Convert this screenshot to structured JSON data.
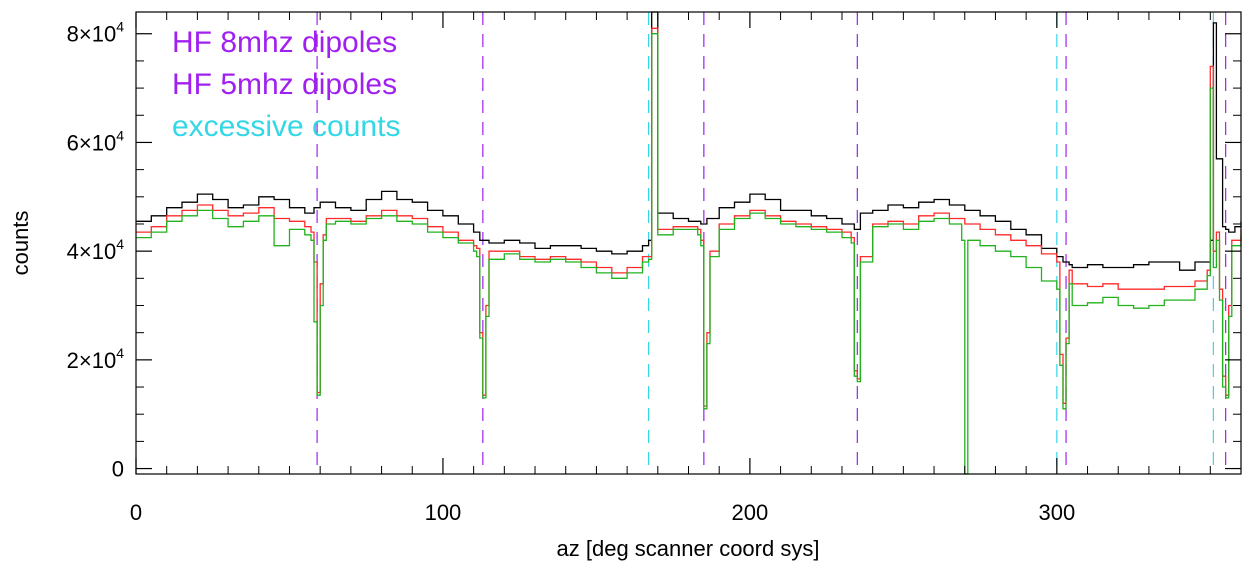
{
  "chart_data": {
    "type": "line",
    "title": "",
    "xlabel": "az [deg scanner coord sys]",
    "ylabel": "counts",
    "xlim": [
      0,
      360
    ],
    "ylim": [
      -1000,
      84000
    ],
    "x_ticks": [
      {
        "value": 0,
        "label": "0"
      },
      {
        "value": 100,
        "label": "100"
      },
      {
        "value": 200,
        "label": "200"
      },
      {
        "value": 300,
        "label": "300"
      }
    ],
    "y_ticks": [
      {
        "value": 0,
        "mant": "0",
        "exp": ""
      },
      {
        "value": 20000,
        "mant": "2×10",
        "exp": "4"
      },
      {
        "value": 40000,
        "mant": "4×10",
        "exp": "4"
      },
      {
        "value": 60000,
        "mant": "6×10",
        "exp": "4"
      },
      {
        "value": 80000,
        "mant": "8×10",
        "exp": "4"
      }
    ],
    "grid": false,
    "legend_position": "top-left",
    "legend": [
      {
        "label": "HF 8mhz dipoles",
        "color": "#a020f0"
      },
      {
        "label": "HF 5mhz dipoles",
        "color": "#a020f0"
      },
      {
        "label": "excessive counts",
        "color": "#34d7e6"
      }
    ],
    "vlines": [
      {
        "x": 59,
        "color": "#a020f0",
        "group": "dipoles"
      },
      {
        "x": 113,
        "color": "#a020f0",
        "group": "dipoles"
      },
      {
        "x": 185,
        "color": "#a020f0",
        "group": "dipoles"
      },
      {
        "x": 235,
        "color": "#a020f0",
        "group": "dipoles"
      },
      {
        "x": 303,
        "color": "#a020f0",
        "group": "dipoles"
      },
      {
        "x": 355,
        "color": "#a020f0",
        "group": "dipoles"
      },
      {
        "x": 167,
        "color": "#34d7e6",
        "group": "excessive"
      },
      {
        "x": 300,
        "color": "#34d7e6",
        "group": "excessive"
      },
      {
        "x": 351,
        "color": "#34d7e6",
        "group": "excessive"
      }
    ],
    "series": [
      {
        "color": "#000000",
        "x": [
          0,
          5,
          10,
          15,
          20,
          25,
          30,
          35,
          40,
          45,
          50,
          55,
          58,
          60,
          65,
          70,
          75,
          80,
          85,
          90,
          95,
          100,
          105,
          110,
          112,
          115,
          120,
          125,
          130,
          135,
          140,
          145,
          150,
          155,
          160,
          165,
          167,
          168,
          170,
          175,
          180,
          184,
          186,
          190,
          195,
          200,
          205,
          210,
          215,
          220,
          225,
          230,
          234,
          236,
          240,
          245,
          250,
          255,
          260,
          265,
          270,
          275,
          280,
          285,
          290,
          295,
          300,
          302,
          304,
          305,
          310,
          315,
          320,
          325,
          330,
          335,
          340,
          345,
          350,
          351,
          352,
          354,
          355,
          356,
          358,
          360
        ],
        "y": [
          45500,
          46500,
          48000,
          49000,
          50500,
          49500,
          48000,
          48500,
          50000,
          49500,
          48000,
          47000,
          48000,
          49000,
          48000,
          47500,
          49500,
          51000,
          49500,
          49000,
          47500,
          46500,
          45000,
          43500,
          42000,
          41500,
          42000,
          41500,
          40500,
          41000,
          41000,
          40500,
          40000,
          39500,
          40000,
          41000,
          42000,
          84000,
          47000,
          46000,
          45500,
          45000,
          46000,
          48000,
          49000,
          50500,
          49500,
          47500,
          47500,
          46500,
          46000,
          45000,
          44000,
          47000,
          47500,
          48500,
          48000,
          49000,
          49500,
          48500,
          47500,
          46500,
          45500,
          44000,
          43000,
          40500,
          39000,
          38000,
          37500,
          37000,
          37500,
          37000,
          37000,
          37500,
          38000,
          38000,
          36500,
          38000,
          42000,
          82000,
          57000,
          44500,
          44000,
          43500,
          44500,
          45500
        ]
      },
      {
        "color": "#ff2a2a",
        "x": [
          0,
          5,
          10,
          15,
          20,
          25,
          30,
          35,
          40,
          45,
          50,
          55,
          57,
          58,
          59,
          60,
          61,
          62,
          65,
          70,
          75,
          80,
          85,
          90,
          95,
          100,
          105,
          110,
          111,
          112,
          113,
          114,
          115,
          120,
          125,
          130,
          135,
          140,
          145,
          150,
          155,
          160,
          165,
          167,
          168,
          170,
          175,
          180,
          183,
          184,
          185,
          186,
          187,
          190,
          195,
          200,
          205,
          210,
          215,
          220,
          225,
          230,
          233,
          234,
          235,
          236,
          240,
          245,
          250,
          255,
          260,
          265,
          270,
          275,
          280,
          285,
          290,
          295,
          300,
          301,
          302,
          303,
          304,
          305,
          310,
          315,
          320,
          325,
          330,
          335,
          340,
          345,
          349,
          350,
          351,
          352,
          353,
          354,
          355,
          356,
          357,
          360
        ],
        "y": [
          43500,
          44500,
          46500,
          47500,
          48500,
          47500,
          46500,
          47000,
          48000,
          46000,
          45500,
          44500,
          43500,
          38000,
          14000,
          34000,
          43000,
          46000,
          46000,
          45500,
          46500,
          47500,
          46500,
          46000,
          44500,
          43500,
          42000,
          41000,
          40500,
          25000,
          13500,
          30000,
          40000,
          40000,
          39000,
          38500,
          39000,
          38500,
          38000,
          37000,
          36000,
          37000,
          39000,
          39000,
          81000,
          44000,
          44500,
          44500,
          44000,
          42000,
          11500,
          25000,
          40000,
          45000,
          46500,
          47500,
          46500,
          45500,
          45000,
          44500,
          44000,
          43500,
          42500,
          18000,
          16500,
          39000,
          45000,
          45500,
          45000,
          46500,
          47000,
          46000,
          45000,
          44000,
          43000,
          42000,
          41000,
          39500,
          38000,
          21000,
          12000,
          24000,
          36500,
          34000,
          33500,
          34000,
          33000,
          33000,
          33000,
          33500,
          33500,
          34500,
          36500,
          74000,
          40000,
          43500,
          33000,
          17000,
          13500,
          30000,
          42000,
          44000
        ]
      },
      {
        "color": "#22b21e",
        "x": [
          0,
          5,
          10,
          15,
          20,
          25,
          30,
          35,
          40,
          45,
          50,
          55,
          57,
          58,
          59,
          60,
          61,
          62,
          65,
          70,
          75,
          80,
          85,
          90,
          95,
          100,
          105,
          110,
          111,
          112,
          113,
          114,
          115,
          120,
          125,
          130,
          135,
          140,
          145,
          150,
          155,
          160,
          165,
          167,
          168,
          170,
          175,
          180,
          183,
          184,
          185,
          186,
          187,
          190,
          195,
          200,
          205,
          210,
          215,
          220,
          225,
          230,
          233,
          234,
          235,
          236,
          240,
          245,
          250,
          255,
          260,
          265,
          269,
          270,
          271,
          275,
          280,
          285,
          290,
          295,
          300,
          301,
          302,
          303,
          304,
          305,
          310,
          315,
          320,
          325,
          330,
          335,
          340,
          345,
          349,
          350,
          351,
          352,
          353,
          354,
          355,
          356,
          357,
          360
        ],
        "y": [
          42500,
          43500,
          45500,
          46500,
          47500,
          46000,
          44500,
          45500,
          46500,
          41000,
          44000,
          43000,
          42000,
          27000,
          13500,
          30000,
          42000,
          45000,
          45500,
          45000,
          46000,
          46500,
          45500,
          45000,
          43500,
          42500,
          41500,
          40000,
          39000,
          24000,
          13000,
          28000,
          38500,
          39500,
          38500,
          38000,
          38500,
          38000,
          37000,
          36000,
          35000,
          36000,
          38000,
          38500,
          80000,
          43000,
          44000,
          44000,
          43000,
          41000,
          11000,
          23000,
          39000,
          44000,
          46000,
          47000,
          46000,
          45000,
          44500,
          44000,
          43500,
          42500,
          41500,
          17000,
          16000,
          38000,
          44500,
          45000,
          44000,
          45500,
          46000,
          45000,
          42000,
          -1000,
          42000,
          41000,
          40000,
          39000,
          37000,
          34500,
          33000,
          19000,
          11000,
          23000,
          34000,
          30000,
          30500,
          31500,
          30000,
          29500,
          30000,
          31000,
          31000,
          33000,
          35500,
          70000,
          37000,
          42000,
          31000,
          15000,
          13000,
          28000,
          41000,
          43000
        ]
      }
    ]
  }
}
